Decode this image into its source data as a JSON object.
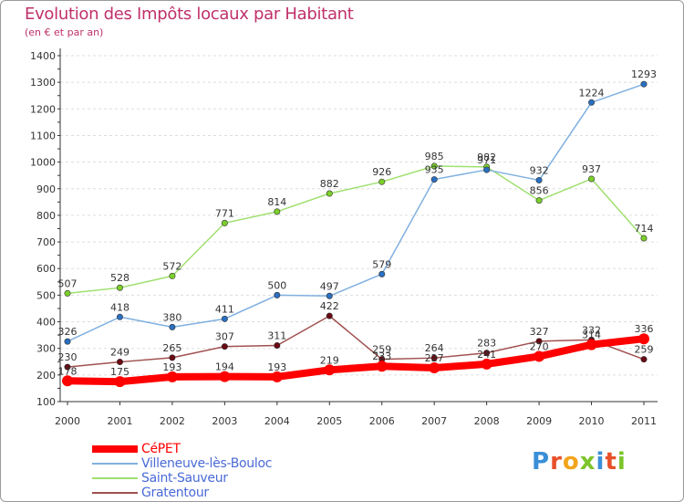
{
  "header": {
    "title": "Evolution des Impôts locaux par Habitant",
    "subtitle": "(en € et par an)"
  },
  "logo": {
    "text": "Proxiti"
  },
  "colors": {
    "title": "#c0306a",
    "grid": "#dddddd",
    "axis": "#333333"
  },
  "chart_data": {
    "type": "line",
    "title": "Evolution des Impôts locaux par Habitant",
    "subtitle": "(en € et par an)",
    "xlabel": "",
    "ylabel": "",
    "x": [
      "2000",
      "2001",
      "2002",
      "2003",
      "2004",
      "2005",
      "2006",
      "2007",
      "2008",
      "2009",
      "2010",
      "2011"
    ],
    "yticks": [
      100,
      200,
      300,
      400,
      500,
      600,
      700,
      800,
      900,
      1000,
      1100,
      1200,
      1300,
      1400
    ],
    "ylim": [
      100,
      1400
    ],
    "grid": "horizontal dashed",
    "legend": "bottom-left",
    "series": [
      {
        "name": "CéPET",
        "color": "#ff0000",
        "marker_color": "#ff0000",
        "emphasis": true,
        "values": [
          178,
          175,
          193,
          194,
          193,
          219,
          233,
          227,
          241,
          270,
          314,
          336
        ],
        "labels": [
          "178",
          "175",
          "193",
          "194",
          "193",
          "219",
          "233",
          "227",
          "241",
          "270",
          "314",
          "336"
        ]
      },
      {
        "name": "Villeneuve-lès-Bouloc",
        "color": "#80b0e0",
        "marker_color": "#2a6fc0",
        "values": [
          326,
          418,
          380,
          411,
          500,
          497,
          579,
          935,
          971,
          932,
          1224,
          1293
        ],
        "labels": [
          "326",
          "418",
          "380",
          "411",
          "500",
          "497",
          "579",
          "935",
          "971",
          "932",
          "1224",
          "1293"
        ]
      },
      {
        "name": "Saint-Sauveur",
        "color": "#a0e070",
        "marker_color": "#7ccf2a",
        "values": [
          507,
          528,
          572,
          771,
          814,
          882,
          926,
          985,
          982,
          856,
          937,
          714
        ],
        "labels": [
          "507",
          "528",
          "572",
          "771",
          "814",
          "882",
          "926",
          "985",
          "982",
          "856",
          "937",
          "714"
        ]
      },
      {
        "name": "Gratentour",
        "color": "#a05050",
        "marker_color": "#6a0a14",
        "values": [
          230,
          249,
          265,
          307,
          311,
          422,
          259,
          264,
          283,
          327,
          332,
          259
        ],
        "labels": [
          "230",
          "249",
          "265",
          "307",
          "311",
          "422",
          "259",
          "264",
          "283",
          "327",
          "332",
          "259"
        ]
      }
    ]
  }
}
